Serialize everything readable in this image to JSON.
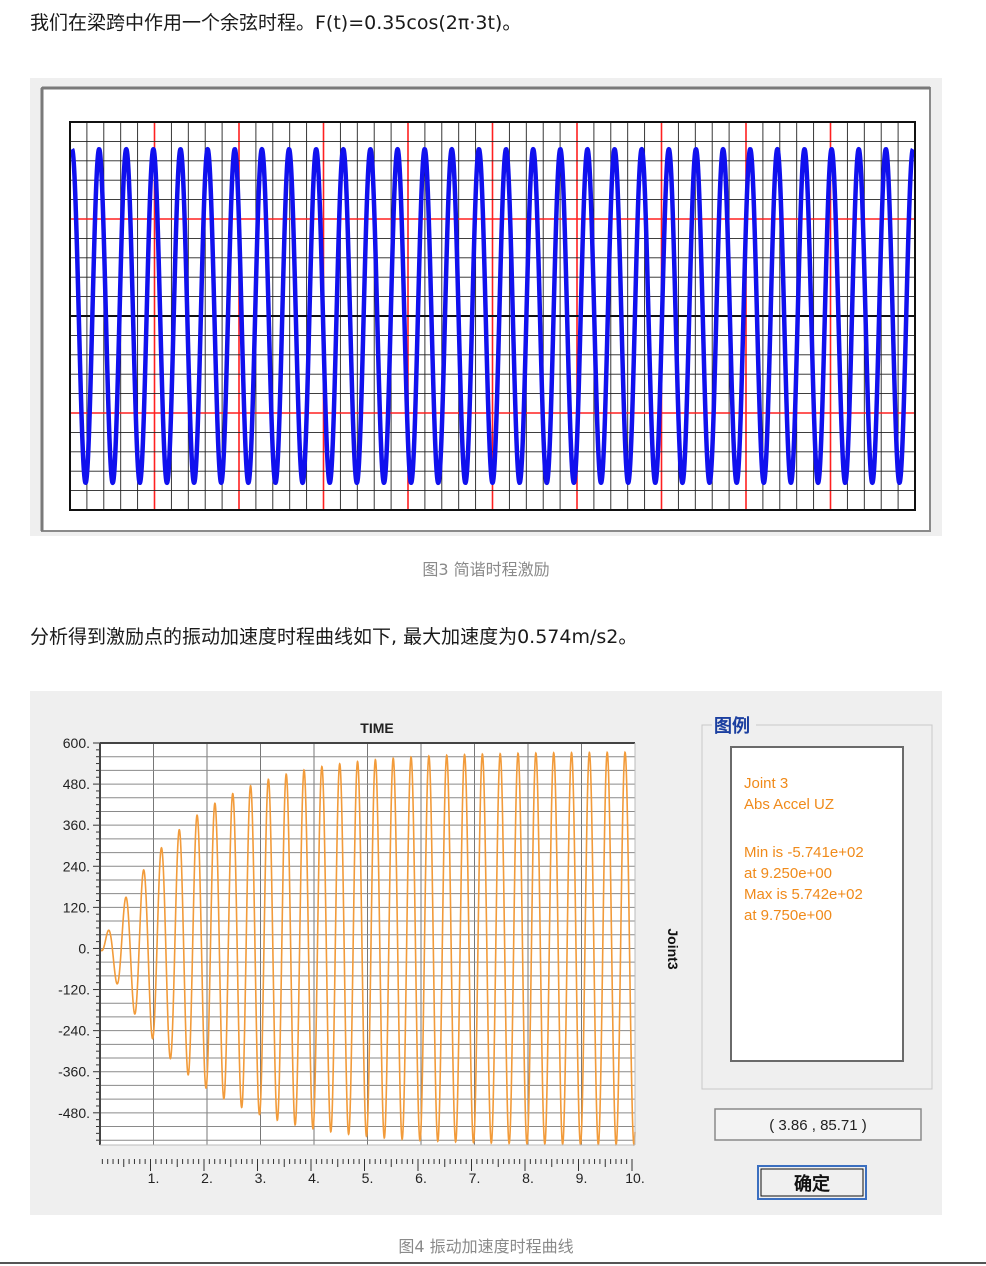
{
  "para1": "我们在梁跨中作用一个余弦时程。F(t)=0.35cos(2π·3t)。",
  "caption1": "图3 简谐时程激励",
  "para2": "分析得到激励点的振动加速度时程曲线如下, 最大加速度为0.574m/s2。",
  "caption2": "图4 振动加速度时程曲线",
  "colors": {
    "wave_blue": "#1010ee",
    "grid_red": "#ff2020",
    "accel_orange": "#f29b3a",
    "legend_text": "#f08a1a",
    "legend_title": "#1b3fa0"
  },
  "chart_data": [
    {
      "type": "line",
      "title": "",
      "xlabel": "",
      "ylabel": "",
      "series": [
        {
          "function": "F(t)=0.35cos(2π·3t)",
          "amplitude": 0.35,
          "frequency_hz": 3,
          "cycles_shown": 31
        }
      ],
      "grid": true,
      "tick_labels": "none"
    },
    {
      "type": "line",
      "title": "TIME",
      "xlabel": "",
      "ylabel": "Joint3",
      "x_ticks": [
        "1.",
        "2.",
        "3.",
        "4.",
        "5.",
        "6.",
        "7.",
        "8.",
        "9.",
        "10."
      ],
      "y_ticks": [
        "600.",
        "480.",
        "360.",
        "240.",
        "120.",
        "0.",
        "-120.",
        "-240.",
        "-360.",
        "-480."
      ],
      "xlim": [
        0,
        10
      ],
      "ylim": [
        -574,
        600
      ],
      "series": [
        {
          "name": "Joint 3 Abs Accel UZ",
          "frequency_hz": 3,
          "steady_amplitude": 574,
          "min": -574.1,
          "max": 574.2,
          "time_constant_s": 1.6
        }
      ],
      "grid": true,
      "legend_position": "right"
    }
  ],
  "legend": {
    "title": "图例",
    "lines": [
      "Joint 3",
      "Abs Accel  UZ",
      "",
      "Min is -5.741e+02",
      "at 9.250e+00",
      "Max is 5.742e+02",
      "at 9.750e+00"
    ]
  },
  "coord_readout": "( 3.86 , 85.71 )",
  "ok_button": "确定"
}
